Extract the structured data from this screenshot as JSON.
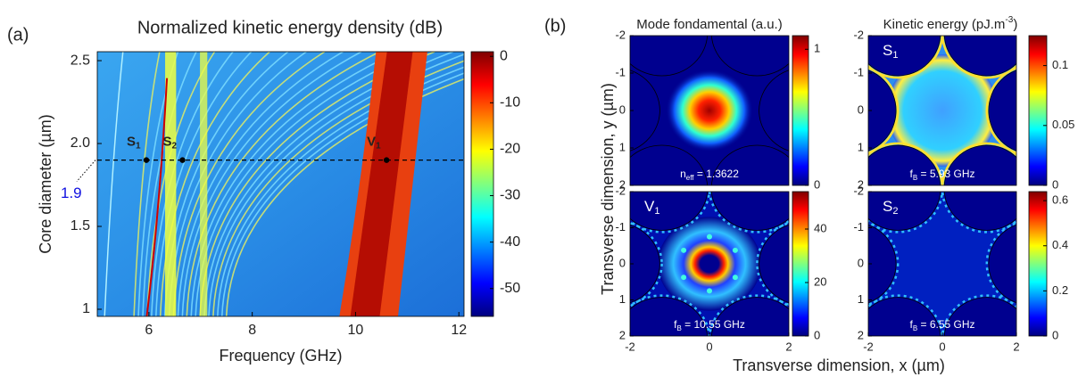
{
  "panel_labels": [
    "(a)",
    "(b)"
  ],
  "shared_labels": {
    "y": "Transverse dimension, y (µm)",
    "x": "Transverse dimension, x (µm)"
  },
  "chart_data": [
    {
      "type": "heatmap",
      "title": "Normalized kinetic energy density (dB)",
      "xlabel": "Frequency (GHz)",
      "ylabel": "Core diameter (µm)",
      "xlim": [
        5,
        12.1
      ],
      "xticks": [
        6,
        8,
        10,
        12
      ],
      "ylim": [
        0.957,
        2.554
      ],
      "yticks": [
        1,
        1.5,
        {
          "value": 2,
          "label": "2.0"
        },
        2.5
      ],
      "clim": [
        -56,
        1
      ],
      "cticks": [
        0,
        -10,
        -20,
        -30,
        -40,
        -50
      ],
      "hline": 1.9,
      "hline_label": "1.9",
      "points": [
        {
          "main": "S",
          "sub": "1",
          "x": 5.95
        },
        {
          "main": "S",
          "sub": "2",
          "x": 6.65
        },
        {
          "main": "V",
          "sub": "1",
          "x": 10.6
        }
      ]
    },
    {
      "type": "heatmap",
      "title": "Mode fondamental (a.u.)",
      "xlim": [
        -2,
        2
      ],
      "ylim": [
        -2,
        2
      ],
      "y_inverted": true,
      "yticks": [
        -2,
        -1,
        0,
        1,
        2
      ],
      "clim": [
        0,
        1.1
      ],
      "cticks": [
        0,
        1
      ],
      "note": {
        "main": "n",
        "sub": "eff",
        "rest": " = 1.3622"
      }
    },
    {
      "type": "heatmap",
      "title": {
        "main": "Kinetic energy (pJ.m",
        "sup": "-3",
        "rest": ")"
      },
      "xlim": [
        -2,
        2
      ],
      "ylim": [
        -2,
        2
      ],
      "y_inverted": true,
      "yticks": [
        -2,
        -1,
        0,
        1,
        2
      ],
      "clim": [
        0,
        0.125
      ],
      "cticks": [
        0,
        0.05,
        0.1
      ],
      "label": {
        "main": "S",
        "sub": "1"
      },
      "note": {
        "main": "f",
        "sub": "B",
        "rest": " = 5.93 GHz"
      }
    },
    {
      "type": "heatmap",
      "xlim": [
        -2,
        2
      ],
      "xticks": [
        -2,
        0,
        2
      ],
      "ylim": [
        -2,
        2
      ],
      "y_inverted": true,
      "yticks": [
        -2,
        -1,
        0,
        1,
        2
      ],
      "clim": [
        0,
        54
      ],
      "cticks": [
        0,
        20,
        40
      ],
      "label": {
        "main": "V",
        "sub": "1"
      },
      "note": {
        "main": "f",
        "sub": "B",
        "rest": " = 10.55 GHz"
      }
    },
    {
      "type": "heatmap",
      "xlim": [
        -2,
        2
      ],
      "xticks": [
        -2,
        0,
        2
      ],
      "ylim": [
        -2,
        2
      ],
      "y_inverted": true,
      "yticks": [
        -2,
        -1,
        0,
        1,
        2
      ],
      "clim": [
        0,
        0.64
      ],
      "cticks": [
        0,
        0.2,
        0.4,
        0.6
      ],
      "label": {
        "main": "S",
        "sub": "2"
      },
      "note": {
        "main": "f",
        "sub": "B",
        "rest": " = 6.55 GHz"
      }
    }
  ]
}
